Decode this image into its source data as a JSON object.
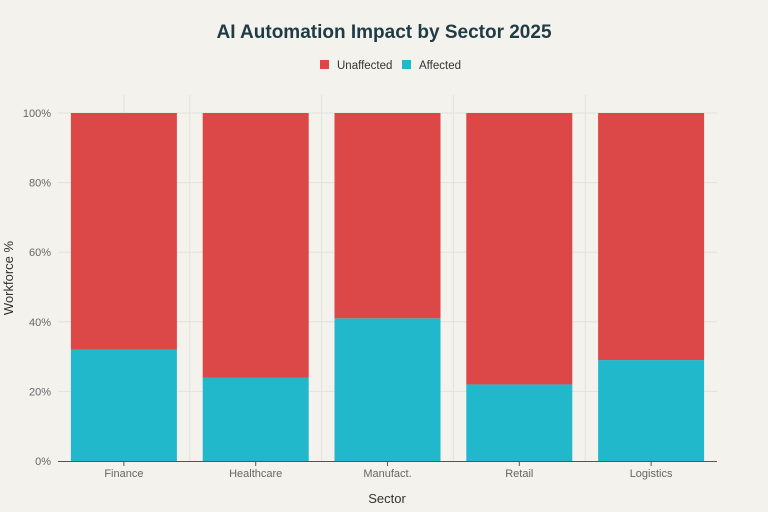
{
  "chart_data": {
    "type": "bar",
    "stacked": true,
    "title": "AI Automation Impact by Sector 2025",
    "xlabel": "Sector",
    "ylabel": "Workforce %",
    "categories": [
      "Finance",
      "Healthcare",
      "Manufact.",
      "Retail",
      "Logistics"
    ],
    "series": [
      {
        "name": "Affected",
        "color": "#21b8cc",
        "values": [
          32,
          24,
          41,
          22,
          29
        ]
      },
      {
        "name": "Unaffected",
        "color": "#dc4748",
        "values": [
          68,
          76,
          59,
          78,
          71
        ]
      }
    ],
    "legend_order": [
      "Unaffected",
      "Affected"
    ],
    "legend_position": "top-center",
    "ylim": [
      0,
      100
    ],
    "yticks": [
      "0%",
      "20%",
      "40%",
      "60%",
      "80%",
      "100%"
    ],
    "ytick_values": [
      0,
      20,
      40,
      60,
      80,
      100
    ],
    "grid": true,
    "background_color": "#f3f2ec",
    "grid_color": "#e2e1db"
  }
}
